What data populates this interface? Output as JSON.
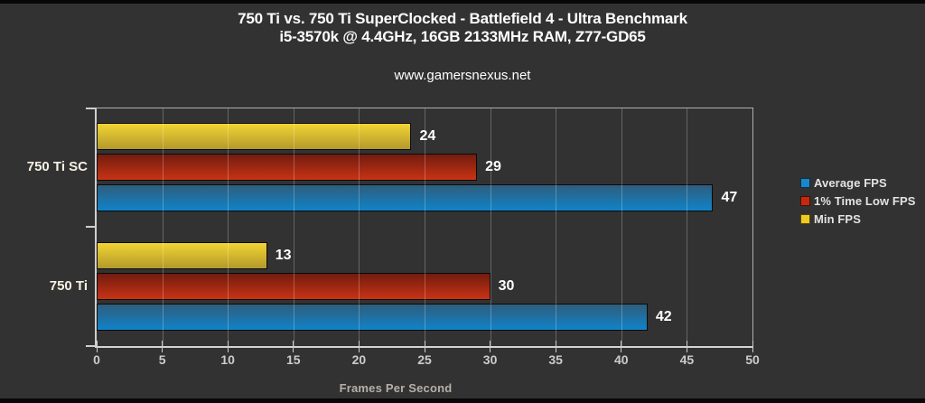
{
  "title": {
    "line1": "750 Ti vs. 750 Ti SuperClocked - Battlefield 4 - Ultra Benchmark",
    "line2": "i5-3570k @ 4.4GHz, 16GB 2133MHz RAM, Z77-GD65"
  },
  "watermark": "www.gamersnexus.net",
  "colors": {
    "background": "#323232",
    "axis": "#cfcfcf",
    "title_text": "#fdfdfd",
    "value_text": "#ffffff"
  },
  "chart_data": {
    "type": "bar",
    "orientation": "horizontal",
    "categories": [
      "750 Ti SC",
      "750 Ti"
    ],
    "series": [
      {
        "name": "Average FPS",
        "color": "#1d86c8",
        "gradient": [
          "#2f5d7c",
          "#1083c9"
        ],
        "values": [
          47,
          42
        ]
      },
      {
        "name": "1% Time Low FPS",
        "color": "#c5290d",
        "gradient": [
          "#711c0f",
          "#c93314"
        ],
        "values": [
          29,
          30
        ]
      },
      {
        "name": "Min FPS",
        "color": "#eecb22",
        "gradient": [
          "#f2d434",
          "#b3992b"
        ],
        "values": [
          24,
          13
        ]
      }
    ],
    "xlabel": "Frames Per Second",
    "xlim": [
      0,
      50
    ],
    "xticks": [
      0,
      5,
      10,
      15,
      20,
      25,
      30,
      35,
      40,
      45,
      50
    ],
    "grid": true,
    "gridlines_overlay_bars": true,
    "legend_position": "right",
    "row_order_top_to_bottom": [
      "Min FPS",
      "1% Time Low FPS",
      "Average FPS"
    ]
  }
}
